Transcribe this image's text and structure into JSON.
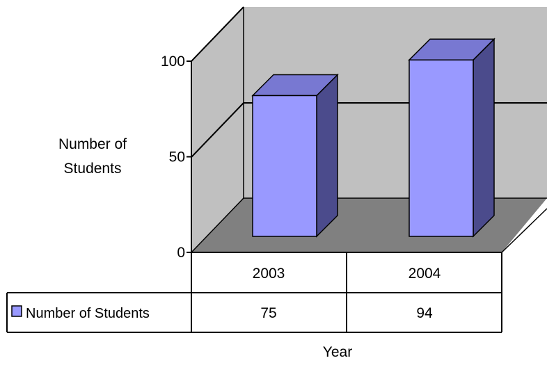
{
  "chart_data": {
    "type": "bar",
    "style": "3d-column-with-data-table",
    "categories": [
      "2003",
      "2004"
    ],
    "series": [
      {
        "name": "Number of Students",
        "values": [
          75,
          94
        ],
        "color": "#9999ff"
      }
    ],
    "y_ticks": [
      "0",
      "50",
      "100"
    ],
    "ylim": [
      0,
      100
    ],
    "ylabel": [
      "Number of",
      "Students"
    ],
    "xlabel": "Year",
    "grid": "horizontal major gridlines",
    "legend": "data-table-row",
    "colors": {
      "wall": "#c0c0c0",
      "floor": "#808080",
      "bar_front": "#9999ff",
      "bar_side": "#4b4b8c",
      "bar_top": "#7878d2"
    }
  }
}
